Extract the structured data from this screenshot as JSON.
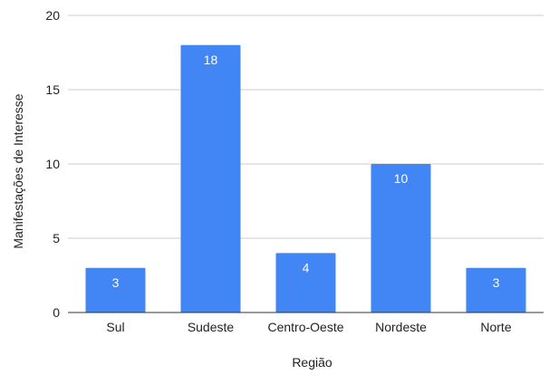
{
  "chart_data": {
    "type": "bar",
    "title": "",
    "xlabel": "Região",
    "ylabel": "Manifestações de Interesse",
    "categories": [
      "Sul",
      "Sudeste",
      "Centro-Oeste",
      "Nordeste",
      "Norte"
    ],
    "values": [
      3,
      18,
      4,
      10,
      3
    ],
    "data_labels": [
      "3",
      "18",
      "4",
      "10",
      "3"
    ],
    "ylim": [
      0,
      20
    ],
    "yticks": [
      0,
      5,
      10,
      15,
      20
    ],
    "grid": true,
    "legend": "none",
    "colors": {
      "bar": "#4285f4",
      "gridline": "#cccccc",
      "baseline": "#333333"
    }
  }
}
